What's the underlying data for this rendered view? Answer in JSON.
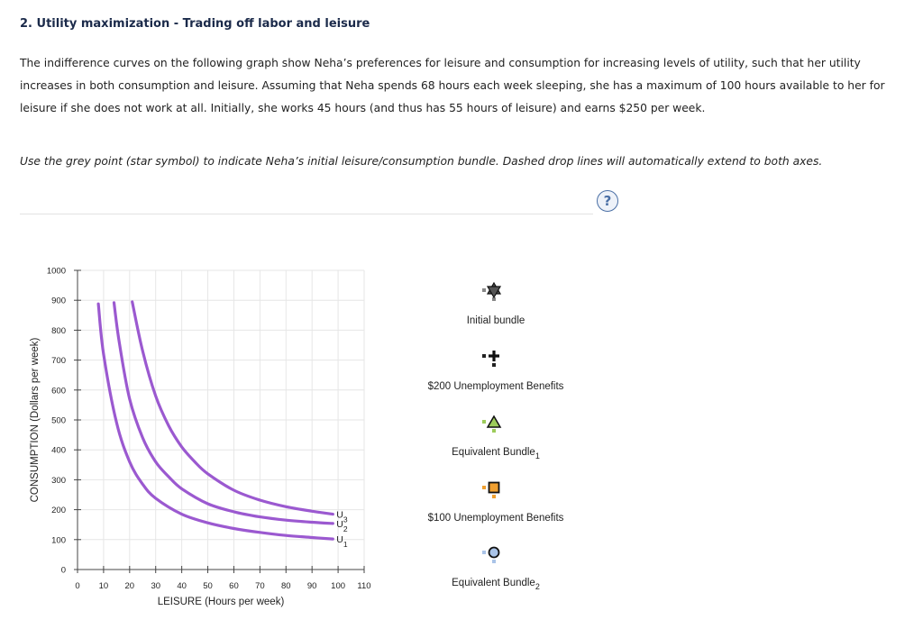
{
  "question": {
    "title": "2. Utility maximization - Trading off labor and leisure",
    "intro": "The indifference curves on the following graph show Neha’s preferences for leisure and consumption for increasing levels of utility, such that her utility increases in both consumption and leisure. Assuming that Neha spends 68 hours each week sleeping, she has a maximum of 100 hours available to her for leisure if she does not work at all. Initially, she works 45 hours (and thus has 55 hours of leisure) and earns $250 per week.",
    "instruction": "Use the grey point (star symbol) to indicate Neha’s initial leisure/consumption bundle. Dashed drop lines will automatically extend to both axes.",
    "help_label": "?"
  },
  "chart_data": {
    "type": "line",
    "xlabel": "LEISURE (Hours per week)",
    "ylabel": "CONSUMPTION (Dollars per week)",
    "xlim": [
      0,
      110
    ],
    "ylim": [
      0,
      1000
    ],
    "x_ticks": [
      0,
      10,
      20,
      30,
      40,
      50,
      60,
      70,
      80,
      90,
      100,
      110
    ],
    "y_ticks": [
      0,
      100,
      200,
      300,
      400,
      500,
      600,
      700,
      800,
      900,
      1000
    ],
    "grid": true,
    "curve_color": "#9b59d0",
    "series": [
      {
        "name": "U1",
        "label_main": "U",
        "label_sub": "1",
        "x": [
          8,
          10,
          15,
          20,
          25,
          30,
          40,
          50,
          60,
          70,
          80,
          90,
          98
        ],
        "y": [
          888,
          720,
          490,
          360,
          285,
          238,
          185,
          156,
          137,
          124,
          114,
          107,
          102
        ]
      },
      {
        "name": "U2",
        "label_main": "U",
        "label_sub": "2",
        "x": [
          14,
          16,
          20,
          25,
          30,
          35,
          40,
          50,
          60,
          70,
          80,
          90,
          98
        ],
        "y": [
          892,
          760,
          570,
          440,
          360,
          310,
          270,
          220,
          193,
          176,
          165,
          158,
          154
        ]
      },
      {
        "name": "U3",
        "label_main": "U",
        "label_sub": "3",
        "x": [
          21,
          25,
          30,
          35,
          40,
          45,
          50,
          60,
          70,
          80,
          90,
          98
        ],
        "y": [
          895,
          730,
          580,
          480,
          410,
          360,
          320,
          265,
          232,
          210,
          195,
          185
        ]
      }
    ]
  },
  "legend": {
    "items": [
      {
        "id": "initial",
        "label": "Initial bundle",
        "sub": "",
        "shape": "star",
        "color": "#888888"
      },
      {
        "id": "ub200",
        "label": "$200 Unemployment Benefits",
        "sub": "",
        "shape": "plus",
        "color": "#222222"
      },
      {
        "id": "eq1",
        "label": "Equivalent Bundle",
        "sub": "1",
        "shape": "triangle",
        "color": "#9dcc5a"
      },
      {
        "id": "ub100",
        "label": "$100 Unemployment Benefits",
        "sub": "",
        "shape": "square",
        "color": "#f0a030"
      },
      {
        "id": "eq2",
        "label": "Equivalent Bundle",
        "sub": "2",
        "shape": "circle",
        "color": "#aac4e8"
      }
    ]
  }
}
